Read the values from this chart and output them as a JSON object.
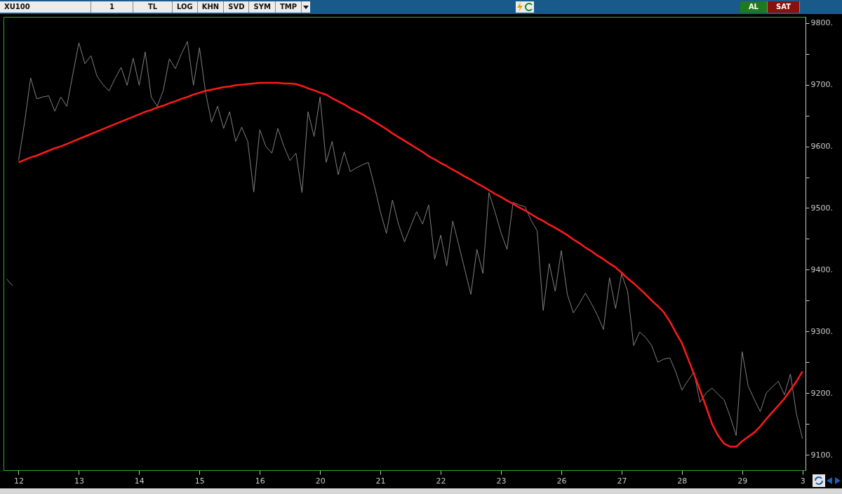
{
  "chart_data": {
    "type": "line",
    "title": "XU100",
    "annotations": [
      "1",
      "TL",
      "LOG",
      "KHN",
      "SVD",
      "SYM",
      "TMP",
      "AL",
      "SAT"
    ],
    "categories": [
      null,
      null,
      "12",
      null,
      null,
      null,
      null,
      null,
      null,
      null,
      null,
      null,
      "13",
      null,
      null,
      null,
      null,
      null,
      null,
      null,
      null,
      null,
      "14",
      null,
      null,
      null,
      null,
      null,
      null,
      null,
      null,
      null,
      "15",
      null,
      null,
      null,
      null,
      null,
      null,
      null,
      null,
      null,
      "16",
      null,
      null,
      null,
      null,
      null,
      null,
      null,
      null,
      null,
      "20",
      null,
      null,
      null,
      null,
      null,
      null,
      null,
      null,
      null,
      "21",
      null,
      null,
      null,
      null,
      null,
      null,
      null,
      null,
      null,
      "22",
      null,
      null,
      null,
      null,
      null,
      null,
      null,
      null,
      null,
      "23",
      null,
      null,
      null,
      null,
      null,
      null,
      null,
      null,
      null,
      "26",
      null,
      null,
      null,
      null,
      null,
      null,
      null,
      null,
      null,
      "27",
      null,
      null,
      null,
      null,
      null,
      null,
      null,
      null,
      null,
      "28",
      null,
      null,
      null,
      null,
      null,
      null,
      null,
      null,
      null,
      "29",
      null,
      null,
      null,
      null,
      null,
      null,
      null,
      null,
      null,
      "3"
    ],
    "ylim": [
      9075,
      9810
    ],
    "yticks": [
      {
        "value": 9100,
        "label": "9100."
      },
      {
        "value": 9150,
        "label": null
      },
      {
        "value": 9200,
        "label": "9200."
      },
      {
        "value": 9250,
        "label": null
      },
      {
        "value": 9300,
        "label": "9300."
      },
      {
        "value": 9350,
        "label": null
      },
      {
        "value": 9400,
        "label": "9400."
      },
      {
        "value": 9450,
        "label": null
      },
      {
        "value": 9500,
        "label": "9500."
      },
      {
        "value": 9550,
        "label": null
      },
      {
        "value": 9600,
        "label": "9600."
      },
      {
        "value": 9650,
        "label": null
      },
      {
        "value": 9700,
        "label": "9700."
      },
      {
        "value": 9750,
        "label": null
      },
      {
        "value": 9800,
        "label": "9800."
      }
    ],
    "grid": false,
    "series": [
      {
        "type": "line",
        "color": "#808080",
        "values": [
          9385,
          9374,
          null,
          null,
          null,
          null,
          null,
          null,
          null,
          null,
          null,
          null,
          null,
          null,
          null,
          null,
          null,
          null,
          null,
          null,
          null,
          null,
          null,
          null,
          null,
          null,
          null,
          null,
          null,
          null,
          null,
          null,
          null,
          null,
          null,
          null,
          null,
          null,
          null,
          null,
          null,
          null,
          null,
          null,
          null,
          null,
          null,
          null,
          null,
          null,
          null,
          null,
          null,
          null,
          null,
          null,
          null,
          null,
          null,
          null,
          null,
          null,
          null,
          null,
          null,
          null,
          null,
          null,
          null,
          null,
          null,
          null,
          null,
          null,
          null,
          null,
          null,
          null,
          null,
          null,
          null,
          null,
          null,
          null,
          null,
          null,
          null,
          null,
          null,
          null,
          null,
          null,
          null,
          null,
          null,
          null,
          null,
          null,
          null,
          null,
          null,
          null,
          null,
          null,
          null,
          null,
          null,
          null,
          null,
          null,
          null,
          null,
          null,
          null,
          null,
          null,
          null,
          null,
          null,
          null,
          null,
          null,
          null,
          null,
          null,
          null,
          null,
          null,
          null,
          null,
          null,
          null,
          null
        ]
      },
      {
        "type": "line",
        "color": "#808080",
        "values": [
          null,
          null,
          9577,
          9639,
          9711,
          9677,
          9680,
          9682,
          9657,
          9680,
          9665,
          9717,
          9768,
          9734,
          9747,
          9714,
          9700,
          9690,
          9710,
          9728,
          9699,
          9743,
          9699,
          9753,
          9680,
          9665,
          9691,
          9742,
          9726,
          9750,
          9770,
          9699,
          9760,
          9688,
          9639,
          9665,
          9629,
          9656,
          9608,
          9631,
          9608,
          9526,
          9627,
          9600,
          9589,
          9629,
          9600,
          9577,
          9589,
          9525,
          9656,
          9616,
          9680,
          9574,
          9608,
          9554,
          9591,
          9559,
          9565,
          9570,
          9574,
          9536,
          9494,
          9459,
          9513,
          9474,
          9445,
          9470,
          9494,
          9474,
          9505,
          9417,
          9456,
          9406,
          9479,
          9440,
          9400,
          9360,
          9433,
          9394,
          9525,
          9494,
          9460,
          9433,
          9509,
          9505,
          9502,
          9480,
          9463,
          9334,
          9410,
          9365,
          9431,
          9360,
          9330,
          9345,
          9362,
          9345,
          9326,
          9303,
          9387,
          9337,
          9393,
          9365,
          9277,
          9299,
          9290,
          9277,
          9250,
          9255,
          9257,
          9234,
          9205,
          9220,
          9234,
          9185,
          9200,
          9208,
          9198,
          9189,
          9162,
          9131,
          9267,
          9211,
          9190,
          9170,
          9200,
          9210,
          9219,
          9197,
          9231,
          9166,
          9126
        ]
      },
      {
        "type": "line",
        "color": "#ff1a1a",
        "values": [
          null,
          null,
          9574,
          9578,
          9582,
          9585,
          9589,
          9593,
          9597,
          9600,
          9604,
          9608,
          9612,
          9616,
          9620,
          9624,
          9628,
          9632,
          9636,
          9640,
          9644,
          9648,
          9652,
          9656,
          9659,
          9663,
          9666,
          9670,
          9673,
          9677,
          9680,
          9684,
          9687,
          9690,
          9692,
          9694,
          9696,
          9697,
          9699,
          9700,
          9701,
          9702,
          9703,
          9703,
          9703,
          9703,
          9702,
          9702,
          9701,
          9698,
          9694,
          9691,
          9687,
          9684,
          9678,
          9673,
          9668,
          9662,
          9657,
          9652,
          9646,
          9640,
          9634,
          9628,
          9621,
          9615,
          9609,
          9603,
          9597,
          9591,
          9584,
          9579,
          9573,
          9568,
          9562,
          9557,
          9551,
          9546,
          9540,
          9535,
          9529,
          9523,
          9518,
          9512,
          9507,
          9501,
          9496,
          9490,
          9484,
          9479,
          9473,
          9468,
          9462,
          9456,
          9449,
          9443,
          9436,
          9430,
          9423,
          9417,
          9410,
          9404,
          9395,
          9386,
          9378,
          9369,
          9360,
          9350,
          9341,
          9331,
          9316,
          9298,
          9281,
          9256,
          9231,
          9205,
          9178,
          9150,
          9131,
          9118,
          9113,
          9113,
          9122,
          9129,
          9136,
          9146,
          9158,
          9169,
          9180,
          9191,
          9205,
          9219,
          9235
        ]
      }
    ]
  }
}
